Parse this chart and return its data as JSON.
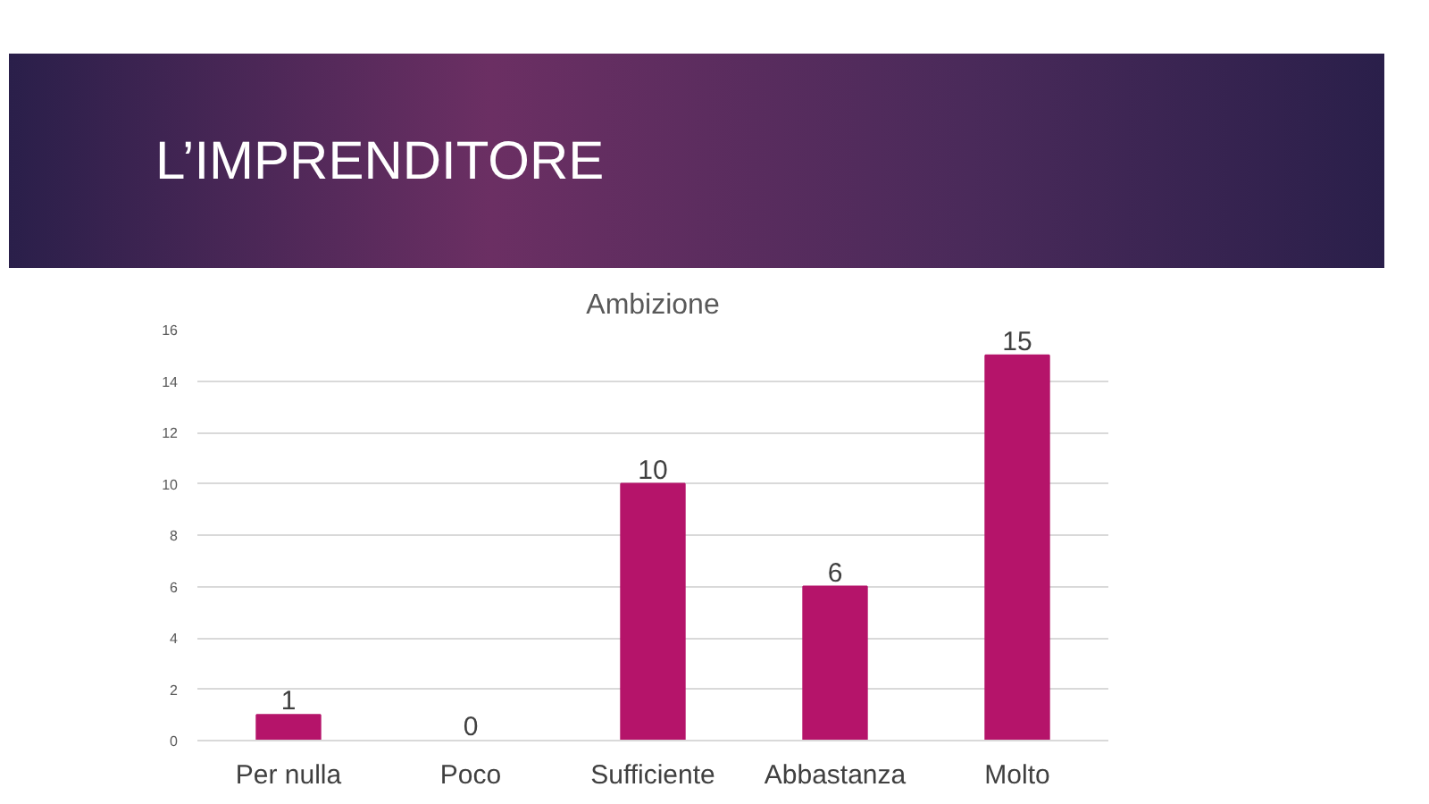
{
  "chart_data": {
    "type": "bar",
    "title": "L’IMPRENDITORE",
    "subtitle": "Ambizione",
    "categories": [
      "Per nulla",
      "Poco",
      "Sufficiente",
      "Abbastanza",
      "Molto"
    ],
    "values": [
      1,
      0,
      10,
      6,
      15
    ],
    "color": "#b5146a",
    "ylim": [
      0,
      16
    ],
    "yticks": [
      0,
      2,
      4,
      6,
      8,
      10,
      12,
      14,
      16
    ],
    "grid": "y",
    "data_labels": true
  }
}
